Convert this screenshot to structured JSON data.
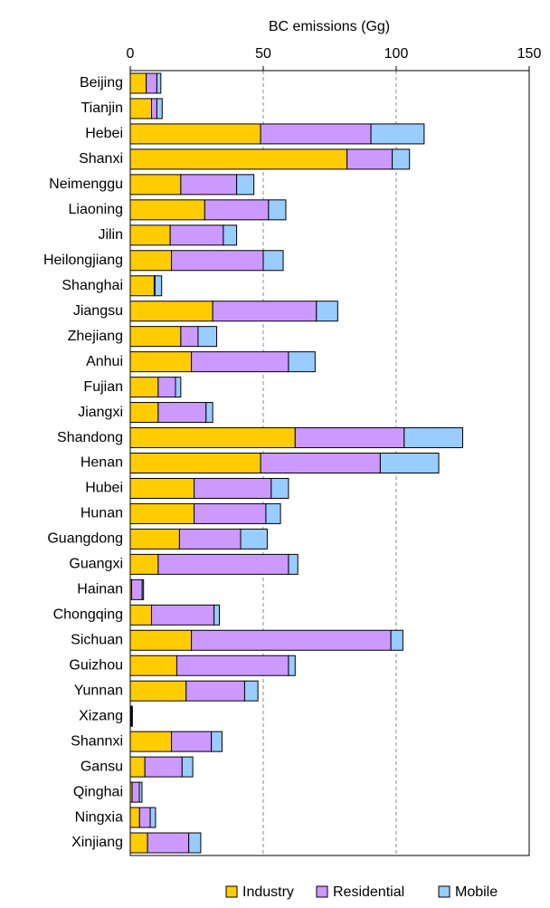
{
  "chart_data": {
    "type": "stacked-bar-horizontal",
    "x_label": "BC emissions (Gg)",
    "categories": [
      "Beijing",
      "Tianjin",
      "Hebei",
      "Shanxi",
      "Neimenggu",
      "Liaoning",
      "Jilin",
      "Heilongjiang",
      "Shanghai",
      "Jiangsu",
      "Zhejiang",
      "Anhui",
      "Fujian",
      "Jiangxi",
      "Shandong",
      "Henan",
      "Hubei",
      "Hunan",
      "Guangdong",
      "Guangxi",
      "Hainan",
      "Chongqing",
      "Sichuan",
      "Guizhou",
      "Yunnan",
      "Xizang",
      "Shannxi",
      "Gansu",
      "Qinghai",
      "Ningxia",
      "Xinjiang"
    ],
    "series": [
      {
        "name": "Industry",
        "color": "#ffcc00",
        "values": [
          6,
          8,
          49,
          81.5,
          19,
          28,
          15,
          15.5,
          9,
          31,
          19,
          23,
          10.5,
          10.5,
          62,
          49,
          24,
          24,
          18.5,
          10.5,
          0.5,
          8,
          23,
          17.5,
          21,
          0.2,
          15.5,
          5.5,
          0.7,
          3.5,
          6.5
        ]
      },
      {
        "name": "Residential",
        "color": "#cc99ff",
        "values": [
          4,
          2,
          41.5,
          17,
          21,
          24,
          20,
          34.5,
          0.3,
          39,
          6.5,
          36.5,
          6.5,
          18,
          41,
          45,
          29,
          27,
          23,
          49,
          4,
          23.5,
          75,
          42,
          22,
          0.3,
          15,
          14,
          2.7,
          4,
          15.5
        ]
      },
      {
        "name": "Mobile",
        "color": "#99ccff",
        "values": [
          1.5,
          2,
          20,
          6.5,
          6.5,
          6.5,
          5,
          7.5,
          2.5,
          8,
          7,
          10,
          2,
          2.5,
          22,
          22,
          6.5,
          5.5,
          10,
          3.5,
          0.5,
          2,
          4.5,
          2.5,
          5,
          0.3,
          4,
          4,
          1,
          2,
          4.5
        ]
      }
    ],
    "xlim": [
      0,
      150
    ],
    "xticks": [
      0,
      50,
      100,
      150
    ],
    "grid": true,
    "legend": "bottom"
  }
}
